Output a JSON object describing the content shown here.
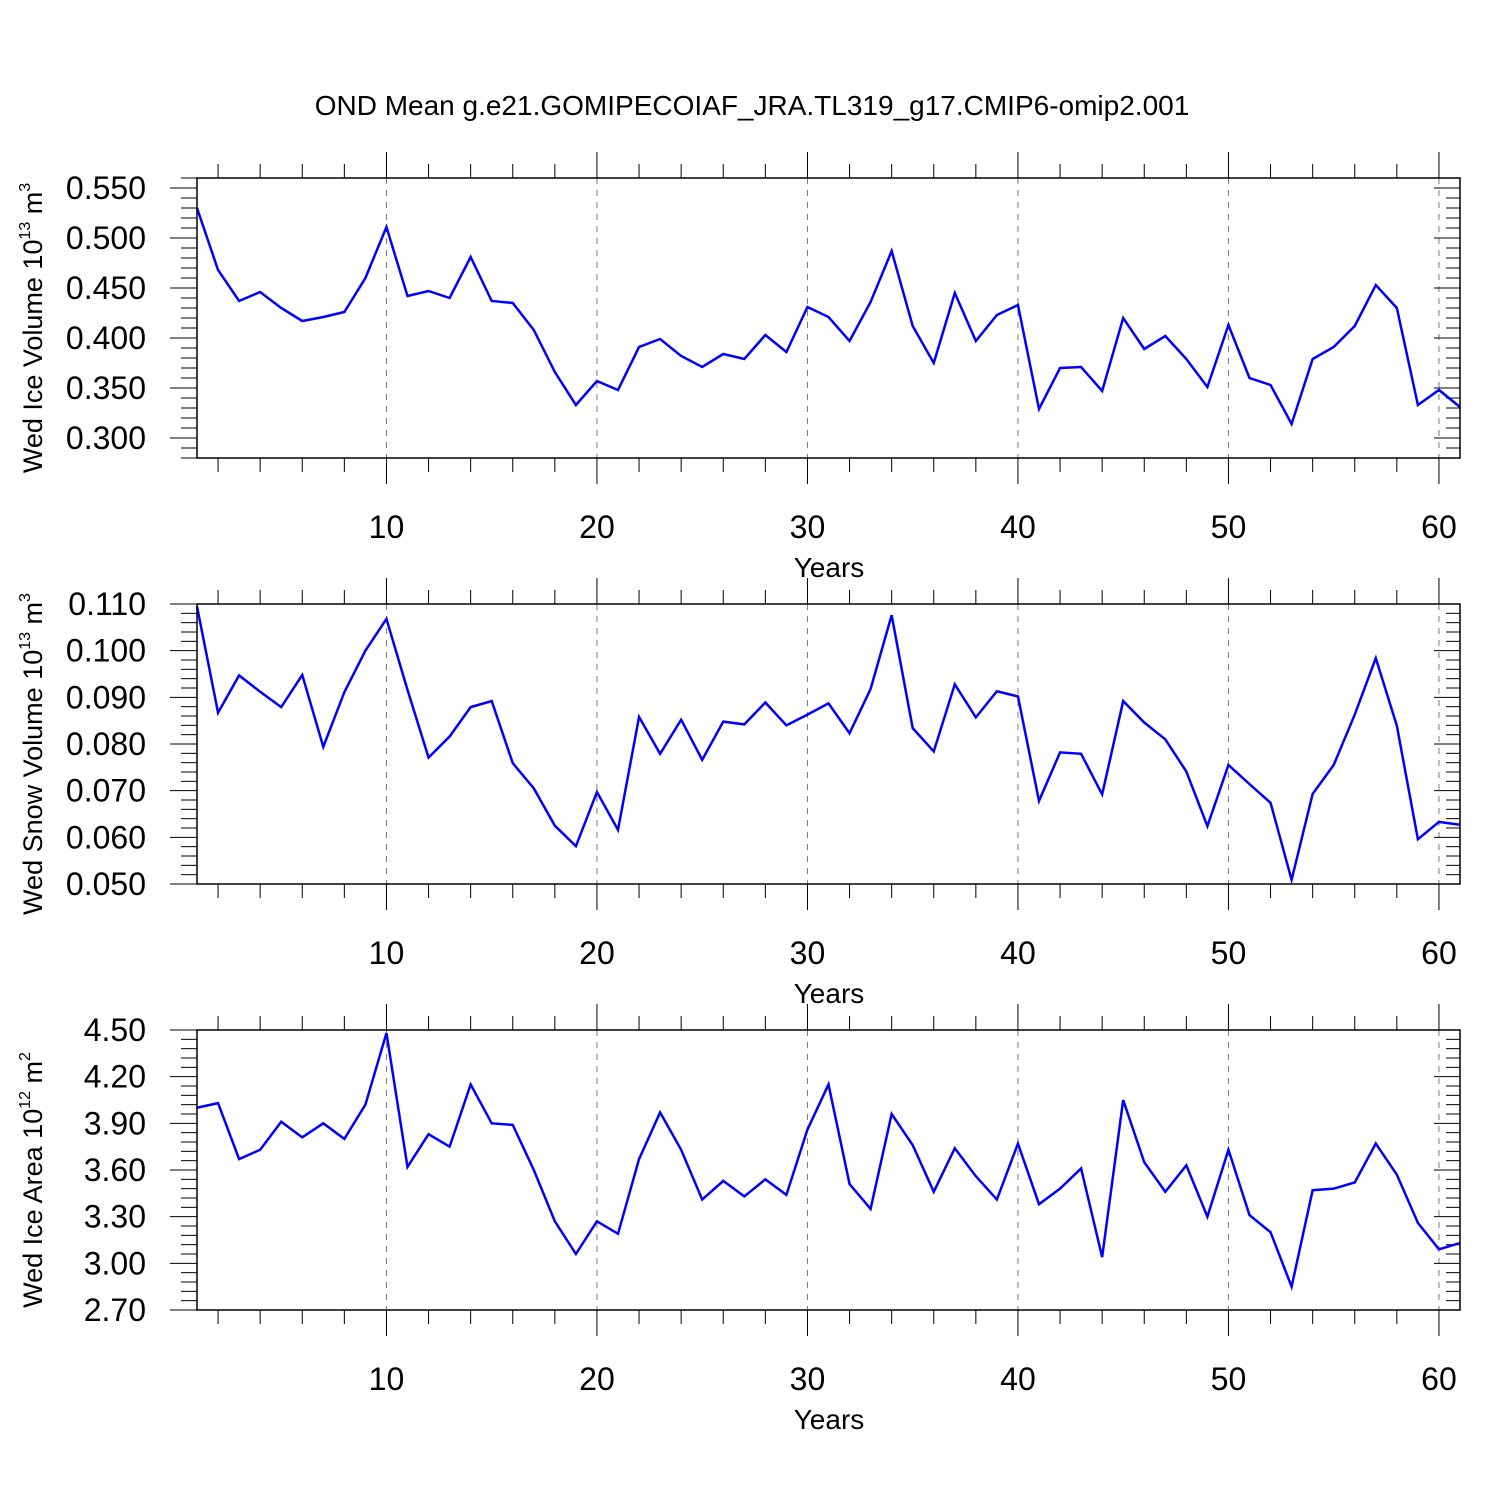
{
  "title": "OND Mean g.e21.GOMIPECOIAF_JRA.TL319_g17.CMIP6-omip2.001",
  "line_color": "#0000ff",
  "chart_data": [
    {
      "type": "line",
      "xlabel": "Years",
      "ylabel_main": "Wed Ice Volume 10",
      "ylabel_exp": "13",
      "ylabel_unit": " m",
      "ylabel_unit_exp": "3",
      "xlim": [
        1,
        61
      ],
      "ylim": [
        0.28,
        0.56
      ],
      "xticks": [
        10,
        20,
        30,
        40,
        50,
        60
      ],
      "yticks": [
        0.3,
        0.35,
        0.4,
        0.45,
        0.5,
        0.55
      ],
      "ytick_labels": [
        "0.300",
        "0.350",
        "0.400",
        "0.450",
        "0.500",
        "0.550"
      ],
      "grid": "vertical dashed at major x ticks",
      "series": [
        {
          "x": [
            1,
            2,
            3,
            4,
            5,
            6,
            7,
            8,
            9,
            10,
            11,
            12,
            13,
            14,
            15,
            16,
            17,
            18,
            19,
            20,
            21,
            22,
            23,
            24,
            25,
            26,
            27,
            28,
            29,
            30,
            31,
            32,
            33,
            34,
            35,
            36,
            37,
            38,
            39,
            40,
            41,
            42,
            43,
            44,
            45,
            46,
            47,
            48,
            49,
            50,
            51,
            52,
            53,
            54,
            55,
            56,
            57,
            58,
            59,
            60,
            61
          ],
          "values": [
            0.53,
            0.468,
            0.437,
            0.446,
            0.43,
            0.417,
            0.421,
            0.426,
            0.46,
            0.511,
            0.442,
            0.447,
            0.44,
            0.481,
            0.437,
            0.435,
            0.408,
            0.366,
            0.333,
            0.357,
            0.348,
            0.391,
            0.399,
            0.382,
            0.371,
            0.384,
            0.379,
            0.403,
            0.386,
            0.431,
            0.421,
            0.397,
            0.436,
            0.487,
            0.412,
            0.375,
            0.445,
            0.397,
            0.423,
            0.433,
            0.329,
            0.37,
            0.371,
            0.347,
            0.42,
            0.389,
            0.402,
            0.379,
            0.351,
            0.413,
            0.36,
            0.353,
            0.314,
            0.379,
            0.391,
            0.412,
            0.453,
            0.43,
            0.333,
            0.348,
            0.331
          ]
        }
      ]
    },
    {
      "type": "line",
      "xlabel": "Years",
      "ylabel_main": "Wed Snow Volume 10",
      "ylabel_exp": "13",
      "ylabel_unit": " m",
      "ylabel_unit_exp": "3",
      "xlim": [
        1,
        61
      ],
      "ylim": [
        0.05,
        0.11
      ],
      "xticks": [
        10,
        20,
        30,
        40,
        50,
        60
      ],
      "yticks": [
        0.05,
        0.06,
        0.07,
        0.08,
        0.09,
        0.1,
        0.11
      ],
      "ytick_labels": [
        "0.050",
        "0.060",
        "0.070",
        "0.080",
        "0.090",
        "0.100",
        "0.110"
      ],
      "grid": "vertical dashed at major x ticks",
      "series": [
        {
          "x": [
            1,
            2,
            3,
            4,
            5,
            6,
            7,
            8,
            9,
            10,
            11,
            12,
            13,
            14,
            15,
            16,
            17,
            18,
            19,
            20,
            21,
            22,
            23,
            24,
            25,
            26,
            27,
            28,
            29,
            30,
            31,
            32,
            33,
            34,
            35,
            36,
            37,
            38,
            39,
            40,
            41,
            42,
            43,
            44,
            45,
            46,
            47,
            48,
            49,
            50,
            51,
            52,
            53,
            54,
            55,
            56,
            57,
            58,
            59,
            60,
            61
          ],
          "values": [
            0.1095,
            0.0867,
            0.0947,
            0.0912,
            0.0879,
            0.0948,
            0.0794,
            0.0911,
            0.1,
            0.1068,
            0.0916,
            0.0771,
            0.0816,
            0.0879,
            0.0892,
            0.0759,
            0.0705,
            0.0625,
            0.0581,
            0.0697,
            0.0616,
            0.0858,
            0.0779,
            0.0852,
            0.0766,
            0.0848,
            0.0842,
            0.0889,
            0.084,
            0.0863,
            0.0887,
            0.0823,
            0.0918,
            0.1076,
            0.0834,
            0.0784,
            0.0928,
            0.0857,
            0.0913,
            0.0902,
            0.0678,
            0.0782,
            0.0779,
            0.0692,
            0.0892,
            0.0846,
            0.081,
            0.0741,
            0.0624,
            0.0755,
            0.0714,
            0.0674,
            0.0509,
            0.0693,
            0.0755,
            0.0863,
            0.0984,
            0.0839,
            0.0596,
            0.0633,
            0.0627
          ]
        }
      ]
    },
    {
      "type": "line",
      "xlabel": "Years",
      "ylabel_main": "Wed Ice Area 10",
      "ylabel_exp": "12",
      "ylabel_unit": " m",
      "ylabel_unit_exp": "2",
      "xlim": [
        1,
        61
      ],
      "ylim": [
        2.7,
        4.5
      ],
      "xticks": [
        10,
        20,
        30,
        40,
        50,
        60
      ],
      "yticks": [
        2.7,
        3.0,
        3.3,
        3.6,
        3.9,
        4.2,
        4.5
      ],
      "ytick_labels": [
        "2.70",
        "3.00",
        "3.30",
        "3.60",
        "3.90",
        "4.20",
        "4.50"
      ],
      "grid": "vertical dashed at major x ticks",
      "series": [
        {
          "x": [
            1,
            2,
            3,
            4,
            5,
            6,
            7,
            8,
            9,
            10,
            11,
            12,
            13,
            14,
            15,
            16,
            17,
            18,
            19,
            20,
            21,
            22,
            23,
            24,
            25,
            26,
            27,
            28,
            29,
            30,
            31,
            32,
            33,
            34,
            35,
            36,
            37,
            38,
            39,
            40,
            41,
            42,
            43,
            44,
            45,
            46,
            47,
            48,
            49,
            50,
            51,
            52,
            53,
            54,
            55,
            56,
            57,
            58,
            59,
            60,
            61
          ],
          "values": [
            4.0,
            4.03,
            3.67,
            3.73,
            3.91,
            3.81,
            3.9,
            3.8,
            4.02,
            4.48,
            3.62,
            3.83,
            3.75,
            4.15,
            3.9,
            3.89,
            3.6,
            3.27,
            3.06,
            3.27,
            3.19,
            3.67,
            3.97,
            3.73,
            3.41,
            3.53,
            3.43,
            3.54,
            3.44,
            3.86,
            4.15,
            3.51,
            3.35,
            3.96,
            3.76,
            3.46,
            3.74,
            3.56,
            3.41,
            3.77,
            3.38,
            3.48,
            3.61,
            3.04,
            4.05,
            3.65,
            3.46,
            3.63,
            3.3,
            3.73,
            3.31,
            3.2,
            2.85,
            3.47,
            3.48,
            3.52,
            3.77,
            3.57,
            3.26,
            3.09,
            3.13
          ]
        }
      ]
    }
  ]
}
